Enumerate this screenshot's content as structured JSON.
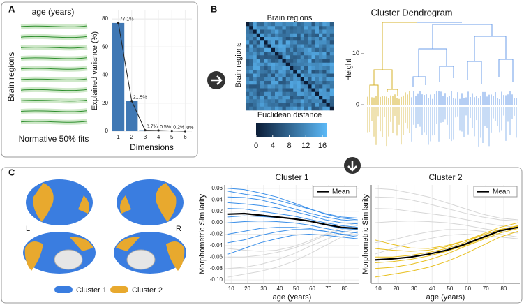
{
  "panel_labels": {
    "a": "A",
    "b": "B",
    "c": "C"
  },
  "normative": {
    "title": "age (years)",
    "ylabel": "Brain regions",
    "caption": "Normative 50% fits"
  },
  "heatmap": {
    "title": "Brain regions",
    "ylabel": "Brain regions",
    "caption": "Euclidean distance",
    "colorbar": {
      "lim": [
        0,
        17
      ],
      "ticks": [
        0,
        4,
        8,
        12,
        16
      ],
      "colors": [
        "#0b1c36",
        "#5bb8f6"
      ]
    }
  },
  "dendrogram": {
    "title": "Cluster Dendrogram",
    "ylabel": "Height",
    "ylim": [
      0,
      16.4
    ],
    "yticks": [
      0,
      10
    ],
    "colors": [
      "#d4b12a",
      "#6b9ee8"
    ]
  },
  "brain_map": {
    "left": "L",
    "right": "R",
    "legend": [
      {
        "name": "Cluster 1",
        "color": "#3a7de0"
      },
      {
        "name": "Cluster 2",
        "color": "#e8a92e"
      }
    ]
  },
  "chart_data": [
    {
      "type": "bar",
      "xlabel": "Dimensions",
      "ylabel": "Explained variance (%)",
      "categories": [
        "1",
        "2",
        "3",
        "4",
        "5",
        "6"
      ],
      "values": [
        77.1,
        21.5,
        0.7,
        0.5,
        0.2,
        0
      ],
      "value_labels": [
        "77.1%",
        "21.5%",
        "0.7%",
        "0.5%",
        "0.2%",
        "0%"
      ],
      "color": "#4078b4",
      "connect_points": true,
      "ylim": [
        0,
        86
      ],
      "yticks": [
        0,
        20,
        40,
        60,
        80
      ],
      "grid": true
    },
    {
      "type": "line",
      "title": "Cluster 1",
      "xlabel": "age (years)",
      "ylabel": "Morphometric Similarity",
      "x": [
        8,
        18,
        28,
        38,
        48,
        58,
        68,
        78,
        88
      ],
      "xlim": [
        6,
        89
      ],
      "xticks": [
        10,
        20,
        30,
        40,
        50,
        60,
        70,
        80
      ],
      "ylim": [
        -0.106,
        0.066
      ],
      "yticks": [
        0.06,
        0.04,
        0.02,
        {
          "value": 0,
          "label": "0.00"
        },
        -0.02,
        -0.04,
        -0.06,
        -0.08,
        {
          "value": -0.1,
          "label": "-0.10"
        }
      ],
      "grid": true,
      "legend": "upper right",
      "series": [
        {
          "name": "Mean",
          "color": "#000000",
          "values": [
            0.015,
            0.016,
            0.013,
            0.01,
            0.007,
            0.003,
            -0.003,
            -0.008,
            -0.01
          ]
        }
      ],
      "curve_groups": [
        {
          "color": "#d6d6d6",
          "lines": [
            [
              -0.095,
              -0.09,
              -0.085,
              -0.078,
              -0.068,
              -0.055,
              -0.04,
              -0.025,
              -0.015
            ],
            [
              -0.08,
              -0.078,
              -0.073,
              -0.065,
              -0.055,
              -0.042,
              -0.03,
              -0.018,
              -0.01
            ],
            [
              -0.06,
              -0.06,
              -0.057,
              -0.052,
              -0.045,
              -0.035,
              -0.022,
              -0.012,
              -0.005
            ],
            [
              -0.045,
              -0.048,
              -0.05,
              -0.048,
              -0.042,
              -0.032,
              -0.02,
              -0.008,
              0
            ]
          ]
        },
        {
          "color": "#3a8fe9",
          "lines": [
            [
              0.06,
              0.058,
              0.052,
              0.045,
              0.035,
              0.025,
              0.015,
              0.008,
              0.005
            ],
            [
              0.055,
              0.05,
              0.046,
              0.04,
              0.032,
              0.024,
              0.016,
              0.01,
              0.008
            ],
            [
              0.045,
              0.044,
              0.04,
              0.033,
              0.025,
              0.017,
              0.01,
              0.005,
              0.003
            ],
            [
              0.035,
              0.033,
              0.03,
              0.026,
              0.02,
              0.013,
              0.005,
              0,
              -0.002
            ],
            [
              0.025,
              0.024,
              0.02,
              0.016,
              0.012,
              0.006,
              0,
              -0.005,
              -0.008
            ],
            [
              0.01,
              0.012,
              0.011,
              0.009,
              0.007,
              0.003,
              -0.004,
              -0.01,
              -0.012
            ],
            [
              0,
              0.002,
              0.003,
              0.002,
              0,
              -0.004,
              -0.01,
              -0.015,
              -0.018
            ],
            [
              -0.02,
              -0.015,
              -0.01,
              -0.008,
              -0.008,
              -0.01,
              -0.015,
              -0.02,
              -0.022
            ],
            [
              -0.035,
              -0.03,
              -0.022,
              -0.016,
              -0.012,
              -0.012,
              -0.015,
              -0.02,
              -0.025
            ],
            [
              -0.055,
              -0.045,
              -0.035,
              -0.028,
              -0.022,
              -0.02,
              -0.022,
              -0.025,
              -0.028
            ]
          ]
        }
      ]
    },
    {
      "type": "line",
      "title": "Cluster 2",
      "xlabel": "age (years)",
      "ylabel": "Morphometric Similarity",
      "x": [
        8,
        18,
        28,
        38,
        48,
        58,
        68,
        78,
        88
      ],
      "xlim": [
        6,
        89
      ],
      "xticks": [
        10,
        20,
        30,
        40,
        50,
        60,
        70,
        80
      ],
      "ylim": [
        -0.106,
        0.066
      ],
      "grid": true,
      "legend": "upper right",
      "series": [
        {
          "name": "Mean",
          "color": "#000000",
          "values": [
            -0.065,
            -0.063,
            -0.06,
            -0.055,
            -0.048,
            -0.038,
            -0.026,
            -0.014,
            -0.008
          ]
        }
      ],
      "curve_groups": [
        {
          "color": "#d6d6d6",
          "lines": [
            [
              0.06,
              0.058,
              0.052,
              0.045,
              0.035,
              0.025,
              0.015,
              0.008,
              0.005
            ],
            [
              0.045,
              0.044,
              0.04,
              0.033,
              0.025,
              0.017,
              0.01,
              0.005,
              0.003
            ],
            [
              0.025,
              0.024,
              0.02,
              0.016,
              0.012,
              0.006,
              0,
              -0.005,
              -0.008
            ],
            [
              0,
              0.002,
              0.003,
              0.002,
              0,
              -0.004,
              -0.01,
              -0.015,
              -0.018
            ],
            [
              -0.035,
              -0.03,
              -0.022,
              -0.016,
              -0.012,
              -0.012,
              -0.015,
              -0.02,
              -0.025
            ],
            [
              -0.055,
              -0.045,
              -0.035,
              -0.028,
              -0.022,
              -0.02,
              -0.022,
              -0.025,
              -0.028
            ]
          ]
        },
        {
          "color": "#e8bf1c",
          "lines": [
            [
              -0.095,
              -0.09,
              -0.085,
              -0.078,
              -0.068,
              -0.055,
              -0.04,
              -0.025,
              -0.015
            ],
            [
              -0.08,
              -0.078,
              -0.073,
              -0.065,
              -0.055,
              -0.042,
              -0.03,
              -0.018,
              -0.01
            ],
            [
              -0.07,
              -0.068,
              -0.064,
              -0.058,
              -0.05,
              -0.04,
              -0.028,
              -0.015,
              -0.008
            ],
            [
              -0.06,
              -0.06,
              -0.057,
              -0.052,
              -0.045,
              -0.035,
              -0.022,
              -0.012,
              -0.005
            ],
            [
              -0.045,
              -0.048,
              -0.05,
              -0.048,
              -0.042,
              -0.032,
              -0.02,
              -0.008,
              0
            ],
            [
              -0.03,
              -0.038,
              -0.044,
              -0.045,
              -0.04,
              -0.032,
              -0.022,
              -0.012,
              -0.006
            ]
          ]
        }
      ]
    }
  ]
}
